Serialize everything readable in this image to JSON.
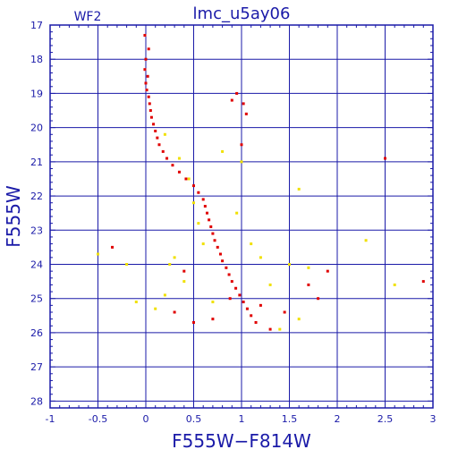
{
  "chart_data": {
    "type": "scatter",
    "title": "lmc_u5ay06",
    "chip_label": "WF2",
    "xlabel": "F555W−F814W",
    "ylabel": "F555W",
    "xlim": [
      -1,
      3
    ],
    "ylim": [
      28.2,
      17
    ],
    "y_inverted": true,
    "xticks": [
      -1,
      -0.5,
      0,
      0.5,
      1,
      1.5,
      2,
      2.5,
      3
    ],
    "xtick_labels": [
      "-1",
      "-0.5",
      "0",
      "0.5",
      "1",
      "1.5",
      "2",
      "2.5",
      "3"
    ],
    "yticks": [
      17,
      18,
      19,
      20,
      21,
      22,
      23,
      24,
      25,
      26,
      27,
      28
    ],
    "ytick_labels": [
      "17",
      "18",
      "19",
      "20",
      "21",
      "22",
      "23",
      "24",
      "25",
      "26",
      "27",
      "28"
    ],
    "grid": true,
    "colors": {
      "axes": "#1a1aa8",
      "grid": "#1a1aa8",
      "series_main": "#e00000",
      "series_secondary": "#f0e000"
    },
    "series": [
      {
        "color": "#e00000",
        "points": [
          [
            -0.01,
            17.3
          ],
          [
            0.03,
            17.7
          ],
          [
            0.0,
            18.0
          ],
          [
            -0.01,
            18.3
          ],
          [
            0.02,
            18.5
          ],
          [
            0.0,
            18.7
          ],
          [
            0.01,
            18.9
          ],
          [
            0.03,
            19.1
          ],
          [
            0.04,
            19.3
          ],
          [
            0.05,
            19.5
          ],
          [
            0.06,
            19.7
          ],
          [
            0.08,
            19.9
          ],
          [
            0.1,
            20.1
          ],
          [
            0.12,
            20.3
          ],
          [
            0.14,
            20.5
          ],
          [
            0.18,
            20.7
          ],
          [
            0.22,
            20.9
          ],
          [
            0.28,
            21.1
          ],
          [
            0.35,
            21.3
          ],
          [
            0.42,
            21.5
          ],
          [
            0.5,
            21.7
          ],
          [
            0.55,
            21.9
          ],
          [
            0.6,
            22.1
          ],
          [
            0.62,
            22.3
          ],
          [
            0.64,
            22.5
          ],
          [
            0.66,
            22.7
          ],
          [
            0.68,
            22.9
          ],
          [
            0.7,
            23.1
          ],
          [
            0.72,
            23.3
          ],
          [
            0.75,
            23.5
          ],
          [
            0.78,
            23.7
          ],
          [
            0.8,
            23.9
          ],
          [
            0.84,
            24.1
          ],
          [
            0.87,
            24.3
          ],
          [
            0.9,
            24.5
          ],
          [
            0.94,
            24.7
          ],
          [
            0.98,
            24.9
          ],
          [
            1.02,
            25.1
          ],
          [
            1.06,
            25.3
          ],
          [
            1.1,
            25.5
          ],
          [
            1.15,
            25.7
          ],
          [
            0.95,
            19.0
          ],
          [
            1.02,
            19.3
          ],
          [
            1.05,
            19.6
          ],
          [
            0.9,
            19.2
          ],
          [
            1.0,
            20.5
          ],
          [
            1.7,
            24.6
          ],
          [
            1.8,
            25.0
          ],
          [
            1.9,
            24.2
          ],
          [
            2.5,
            20.9
          ],
          [
            2.9,
            24.5
          ],
          [
            -0.35,
            23.5
          ],
          [
            0.3,
            25.4
          ],
          [
            0.5,
            25.7
          ],
          [
            1.3,
            25.9
          ],
          [
            1.45,
            25.4
          ],
          [
            0.7,
            25.6
          ],
          [
            1.2,
            25.2
          ],
          [
            0.88,
            25.0
          ],
          [
            0.4,
            24.2
          ]
        ]
      },
      {
        "color": "#f0e000",
        "points": [
          [
            0.2,
            20.2
          ],
          [
            0.35,
            20.9
          ],
          [
            0.45,
            21.5
          ],
          [
            0.5,
            22.2
          ],
          [
            0.55,
            22.8
          ],
          [
            0.6,
            23.4
          ],
          [
            0.3,
            23.8
          ],
          [
            0.4,
            24.5
          ],
          [
            0.2,
            24.9
          ],
          [
            0.1,
            25.3
          ],
          [
            -0.2,
            24.0
          ],
          [
            -0.5,
            23.7
          ],
          [
            1.1,
            23.4
          ],
          [
            1.2,
            23.8
          ],
          [
            1.5,
            24.0
          ],
          [
            1.7,
            24.1
          ],
          [
            1.6,
            21.8
          ],
          [
            1.0,
            21.0
          ],
          [
            0.8,
            20.7
          ],
          [
            0.7,
            25.1
          ],
          [
            1.4,
            25.9
          ],
          [
            1.6,
            25.6
          ],
          [
            2.6,
            24.6
          ],
          [
            0.25,
            24.0
          ],
          [
            1.3,
            24.6
          ],
          [
            0.95,
            22.5
          ],
          [
            2.3,
            23.3
          ],
          [
            -0.1,
            25.1
          ]
        ]
      }
    ]
  }
}
